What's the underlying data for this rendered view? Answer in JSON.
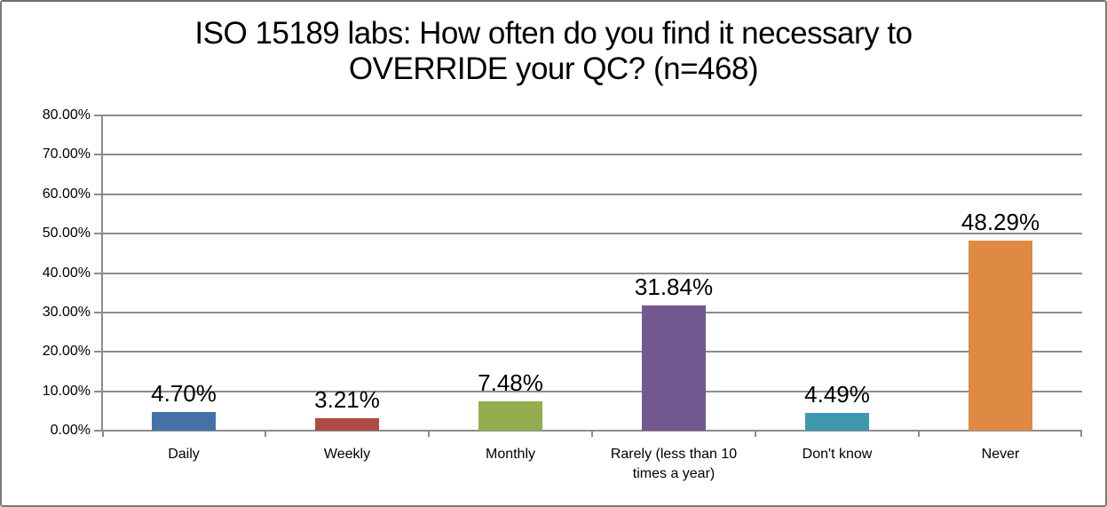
{
  "chart_data": {
    "type": "bar",
    "title": "ISO 15189 labs: How often do you find it necessary to OVERRIDE your QC? (n=468)",
    "categories": [
      "Daily",
      "Weekly",
      "Monthly",
      "Rarely (less than 10 times a year)",
      "Don't know",
      "Never"
    ],
    "values": [
      4.7,
      3.21,
      7.48,
      31.84,
      4.49,
      48.29
    ],
    "data_labels": [
      "4.70%",
      "3.21%",
      "7.48%",
      "31.84%",
      "4.49%",
      "48.29%"
    ],
    "bar_colors": [
      "#4472A8",
      "#AE4A45",
      "#94AD4F",
      "#72588F",
      "#3F99AE",
      "#DE8A43"
    ],
    "ylim": [
      0,
      80
    ],
    "ytick_step": 10,
    "ytick_labels": [
      "0.00%",
      "10.00%",
      "20.00%",
      "30.00%",
      "40.00%",
      "50.00%",
      "60.00%",
      "70.00%",
      "80.00%"
    ],
    "grid": true,
    "legend_position": "none",
    "xlabel": "",
    "ylabel": ""
  },
  "style": {
    "axis_color": "#8C8C8C",
    "gridline_color": "#8C8C8C",
    "frame_border_color": "#7A7A7A",
    "background_color": "#FFFFFF",
    "text_color": "#000000"
  }
}
